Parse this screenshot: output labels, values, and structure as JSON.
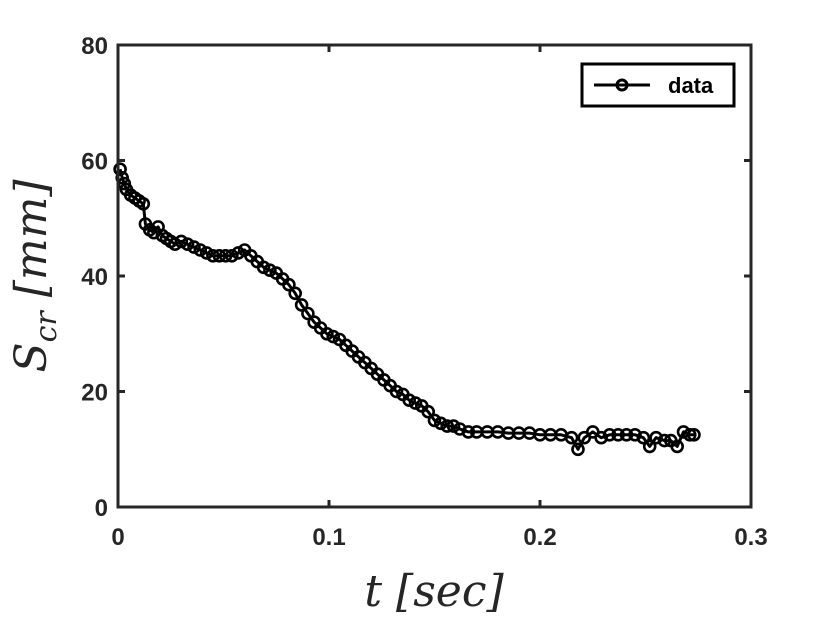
{
  "chart_data": {
    "type": "scatter",
    "xlabel": "t [sec]",
    "ylabel": "S_cr [mm]",
    "xlim": [
      0,
      0.3
    ],
    "ylim": [
      0,
      80
    ],
    "xticks": [
      "0",
      "0.1",
      "0.2",
      "0.3"
    ],
    "yticks": [
      "0",
      "20",
      "40",
      "60",
      "80"
    ],
    "legend": {
      "position": "top-right",
      "entries": [
        "data"
      ]
    },
    "grid": false,
    "series": [
      {
        "name": "data",
        "color": "#000000",
        "marker": "circle-line",
        "points": [
          [
            0.001,
            58.5
          ],
          [
            0.002,
            57.0
          ],
          [
            0.003,
            56.0
          ],
          [
            0.004,
            55.0
          ],
          [
            0.006,
            54.0
          ],
          [
            0.008,
            53.5
          ],
          [
            0.01,
            53.0
          ],
          [
            0.012,
            52.5
          ],
          [
            0.013,
            49.0
          ],
          [
            0.015,
            48.0
          ],
          [
            0.017,
            47.5
          ],
          [
            0.019,
            48.5
          ],
          [
            0.021,
            47.0
          ],
          [
            0.023,
            46.5
          ],
          [
            0.025,
            46.0
          ],
          [
            0.027,
            45.5
          ],
          [
            0.03,
            46.0
          ],
          [
            0.033,
            45.5
          ],
          [
            0.036,
            45.0
          ],
          [
            0.039,
            44.5
          ],
          [
            0.042,
            44.0
          ],
          [
            0.045,
            43.5
          ],
          [
            0.048,
            43.5
          ],
          [
            0.051,
            43.5
          ],
          [
            0.054,
            43.5
          ],
          [
            0.057,
            44.0
          ],
          [
            0.06,
            44.5
          ],
          [
            0.063,
            43.5
          ],
          [
            0.066,
            42.5
          ],
          [
            0.069,
            41.5
          ],
          [
            0.072,
            41.0
          ],
          [
            0.075,
            40.5
          ],
          [
            0.078,
            39.5
          ],
          [
            0.081,
            38.5
          ],
          [
            0.084,
            37.0
          ],
          [
            0.087,
            35.0
          ],
          [
            0.09,
            33.5
          ],
          [
            0.093,
            32.0
          ],
          [
            0.096,
            31.0
          ],
          [
            0.099,
            30.0
          ],
          [
            0.102,
            29.5
          ],
          [
            0.105,
            29.0
          ],
          [
            0.108,
            28.0
          ],
          [
            0.111,
            27.0
          ],
          [
            0.114,
            26.0
          ],
          [
            0.117,
            25.0
          ],
          [
            0.12,
            24.0
          ],
          [
            0.123,
            23.0
          ],
          [
            0.126,
            22.0
          ],
          [
            0.129,
            21.0
          ],
          [
            0.132,
            20.0
          ],
          [
            0.135,
            19.5
          ],
          [
            0.138,
            18.5
          ],
          [
            0.141,
            18.0
          ],
          [
            0.144,
            17.5
          ],
          [
            0.147,
            16.5
          ],
          [
            0.15,
            15.0
          ],
          [
            0.153,
            14.5
          ],
          [
            0.156,
            14.0
          ],
          [
            0.159,
            14.0
          ],
          [
            0.162,
            13.5
          ],
          [
            0.166,
            13.0
          ],
          [
            0.17,
            13.0
          ],
          [
            0.175,
            13.0
          ],
          [
            0.18,
            13.0
          ],
          [
            0.185,
            12.8
          ],
          [
            0.19,
            12.8
          ],
          [
            0.195,
            12.8
          ],
          [
            0.2,
            12.5
          ],
          [
            0.205,
            12.5
          ],
          [
            0.21,
            12.5
          ],
          [
            0.215,
            12.0
          ],
          [
            0.218,
            10.0
          ],
          [
            0.221,
            12.0
          ],
          [
            0.225,
            13.0
          ],
          [
            0.229,
            12.0
          ],
          [
            0.233,
            12.5
          ],
          [
            0.237,
            12.5
          ],
          [
            0.241,
            12.5
          ],
          [
            0.245,
            12.5
          ],
          [
            0.249,
            12.0
          ],
          [
            0.252,
            10.5
          ],
          [
            0.255,
            12.0
          ],
          [
            0.259,
            11.5
          ],
          [
            0.262,
            11.5
          ],
          [
            0.265,
            10.5
          ],
          [
            0.268,
            13.0
          ],
          [
            0.271,
            12.5
          ],
          [
            0.273,
            12.5
          ]
        ]
      }
    ]
  }
}
